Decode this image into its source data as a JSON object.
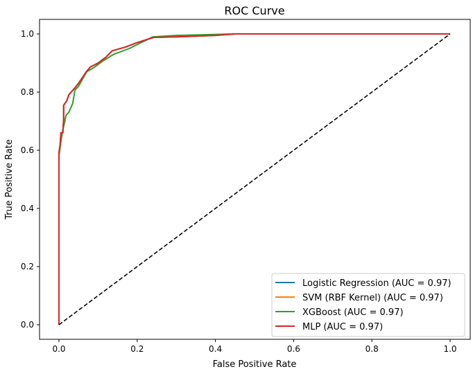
{
  "chart_data": {
    "type": "line",
    "title": "ROC Curve",
    "xlabel": "False Positive Rate",
    "ylabel": "True Positive Rate",
    "xlim": [
      -0.05,
      1.05
    ],
    "ylim": [
      -0.05,
      1.05
    ],
    "xticks": [
      "0.0",
      "0.2",
      "0.4",
      "0.6",
      "0.8",
      "1.0"
    ],
    "yticks": [
      "0.0",
      "0.2",
      "0.4",
      "0.6",
      "0.8",
      "1.0"
    ],
    "grid": false,
    "legend_position": "lower-right",
    "diagonal": {
      "x": [
        0,
        1
      ],
      "y": [
        0,
        1
      ],
      "color": "#000000",
      "style": "dashed"
    },
    "series": [
      {
        "name": "Logistic Regression (AUC = 0.97)",
        "color": "#1f77b4",
        "x": [
          0,
          0,
          0.003,
          0.005,
          0.01,
          0.012,
          0.012,
          0.02,
          0.025,
          0.041,
          0.05,
          0.06,
          0.07,
          0.08,
          0.1,
          0.12,
          0.136,
          0.17,
          0.2,
          0.242,
          0.3,
          0.4,
          0.45,
          1
        ],
        "y": [
          0,
          0.59,
          0.62,
          0.66,
          0.66,
          0.71,
          0.755,
          0.77,
          0.79,
          0.815,
          0.83,
          0.85,
          0.87,
          0.886,
          0.9,
          0.92,
          0.942,
          0.955,
          0.97,
          0.988,
          0.99,
          0.995,
          1,
          1
        ]
      },
      {
        "name": "SVM (RBF Kernel) (AUC = 0.97)",
        "color": "#ff7f0e",
        "x": [
          0,
          0,
          0.003,
          0.005,
          0.01,
          0.012,
          0.012,
          0.02,
          0.025,
          0.041,
          0.05,
          0.06,
          0.07,
          0.08,
          0.1,
          0.12,
          0.136,
          0.17,
          0.2,
          0.242,
          0.3,
          0.4,
          0.45,
          1
        ],
        "y": [
          0,
          0.59,
          0.62,
          0.66,
          0.66,
          0.71,
          0.755,
          0.77,
          0.79,
          0.815,
          0.83,
          0.85,
          0.87,
          0.886,
          0.9,
          0.92,
          0.942,
          0.955,
          0.97,
          0.988,
          0.99,
          0.995,
          1,
          1
        ]
      },
      {
        "name": "XGBoost (AUC = 0.97)",
        "color": "#2ca02c",
        "x": [
          0,
          0,
          0.005,
          0.01,
          0.015,
          0.018,
          0.025,
          0.035,
          0.041,
          0.05,
          0.071,
          0.09,
          0.11,
          0.14,
          0.18,
          0.21,
          0.24,
          0.3,
          0.45,
          1
        ],
        "y": [
          0,
          0.58,
          0.63,
          0.67,
          0.7,
          0.72,
          0.73,
          0.76,
          0.807,
          0.82,
          0.87,
          0.885,
          0.905,
          0.93,
          0.95,
          0.97,
          0.99,
          0.995,
          1,
          1
        ]
      },
      {
        "name": "MLP (AUC = 0.97)",
        "color": "#d62728",
        "x": [
          0,
          0,
          0.003,
          0.005,
          0.01,
          0.012,
          0.012,
          0.02,
          0.025,
          0.041,
          0.05,
          0.06,
          0.07,
          0.08,
          0.1,
          0.12,
          0.136,
          0.17,
          0.2,
          0.242,
          0.3,
          0.4,
          0.45,
          1
        ],
        "y": [
          0,
          0.59,
          0.62,
          0.66,
          0.66,
          0.71,
          0.755,
          0.77,
          0.79,
          0.815,
          0.83,
          0.85,
          0.87,
          0.886,
          0.9,
          0.92,
          0.942,
          0.955,
          0.97,
          0.988,
          0.99,
          0.995,
          1,
          1
        ]
      }
    ]
  }
}
